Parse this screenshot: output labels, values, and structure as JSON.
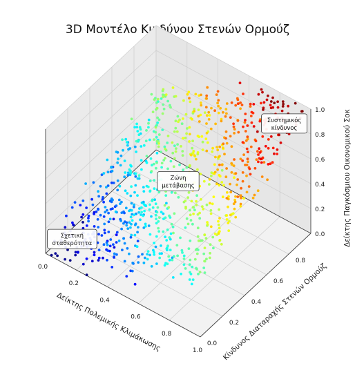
{
  "chart_data": {
    "type": "scatter",
    "dimensions": 3,
    "title": "3D Μοντέλο Κινδύνου Στενών Ορμούζ",
    "xlabel": "Δείκτης Πολεμικής Κλιμάκωσης",
    "ylabel": "Κίνδυνος Διαταραχής Στενών Ορμούζ",
    "zlabel": "Δείκτης Παγκόσμιου Οικονομικού Σοκ",
    "xlim": [
      0,
      1
    ],
    "ylim": [
      0,
      1
    ],
    "zlim": [
      0,
      1
    ],
    "x_ticks": [
      "0.0",
      "0.2",
      "0.4",
      "0.6",
      "0.8",
      "1.0"
    ],
    "y_ticks": [
      "0.0",
      "0.2",
      "0.4",
      "0.6",
      "0.8"
    ],
    "z_ticks": [
      "0.0",
      "0.2",
      "0.4",
      "0.6",
      "0.8",
      "1.0"
    ],
    "colormap": "jet",
    "colormap_stops": [
      "#00007f",
      "#0000ff",
      "#007fff",
      "#00ffff",
      "#7fff7f",
      "#ffff00",
      "#ff7f00",
      "#ff0000",
      "#7f0000"
    ],
    "grid": true,
    "point_count": 900,
    "surface_model": "z ≈ 0.5·x + 0.5·y",
    "annotations": [
      {
        "text_lines": [
          "Σχετική",
          "σταθερότητα"
        ],
        "x": 0.1,
        "y": 0.1,
        "z": 0.1
      },
      {
        "text_lines": [
          "Ζώνη",
          "μετάβασης"
        ],
        "x": 0.5,
        "y": 0.5,
        "z": 0.5
      },
      {
        "text_lines": [
          "Συστημικός",
          "κίνδυνος"
        ],
        "x": 0.9,
        "y": 0.9,
        "z": 0.9
      }
    ]
  }
}
